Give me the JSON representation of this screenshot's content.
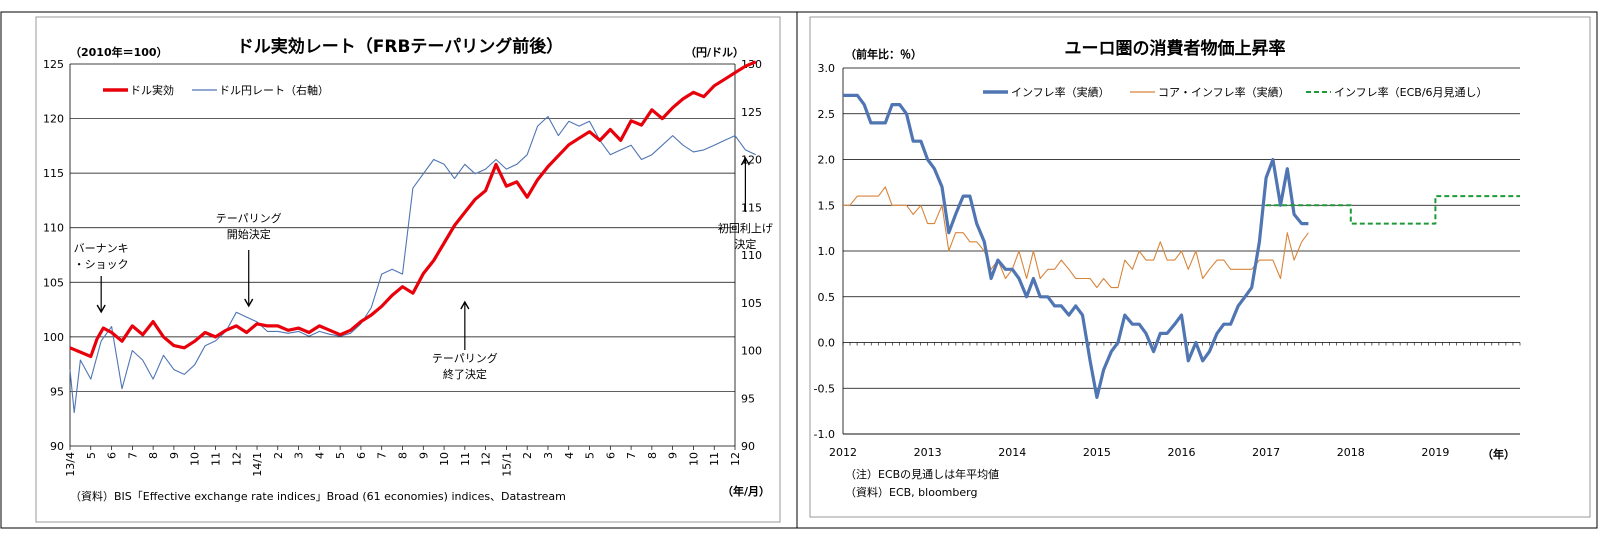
{
  "left": {
    "title": "ドル実効レート（FRBテーパリング前後）",
    "left_unit": "（2010年＝100）",
    "right_unit": "（円/ドル）",
    "source": "（資料）BIS「Effective exchange rate indices」Broad (61 economies) indices、Datastream",
    "x_unit": "（年/月）",
    "legend": [
      "ドル実効",
      "ドル円レート（右軸）"
    ],
    "colors": {
      "ドル実効": "#e8000b",
      "ドル円レート（右軸）": "#4f75b3"
    },
    "annotations": [
      {
        "lines": [
          "バーナンキ",
          "・ショック"
        ],
        "x": 1.5
      },
      {
        "lines": [
          "テーパリング",
          "開始決定"
        ],
        "x": 8.6
      },
      {
        "lines": [
          "テーパリング",
          "終了決定"
        ],
        "x": 19.0
      },
      {
        "lines": [
          "初回利上げ",
          "決定"
        ],
        "x": 32.5
      }
    ]
  },
  "right": {
    "title": "ユーロ圏の消費者物価上昇率",
    "y_unit": "（前年比：％）",
    "x_unit": "（年）",
    "note": "（注）ECBの見通しは年平均値",
    "source": "（資料）ECB, bloomberg",
    "legend": [
      "インフレ率（実績）",
      "コア・インフレ率（実績）",
      "インフレ率（ECB/6月見通し）"
    ],
    "colors": {
      "インフレ率（実績）": "#4f75b3",
      "コア・インフレ率（実績）": "#d8853a",
      "インフレ率（ECB/6月見通し）": "#1f9a3a"
    }
  },
  "chart_data": [
    {
      "type": "line",
      "title": "ドル実効レート（FRBテーパリング前後）",
      "x_tick_labels": [
        "13/4",
        "5",
        "6",
        "7",
        "8",
        "9",
        "10",
        "11",
        "12",
        "14/1",
        "2",
        "3",
        "4",
        "5",
        "6",
        "7",
        "8",
        "9",
        "10",
        "11",
        "12",
        "15/1",
        "2",
        "3",
        "4",
        "5",
        "6",
        "7",
        "8",
        "9",
        "10",
        "11",
        "12"
      ],
      "ylim_left": [
        90,
        125
      ],
      "ylim_right": [
        90,
        130
      ],
      "y_ticks_left": [
        90,
        95,
        100,
        105,
        110,
        115,
        120,
        125
      ],
      "y_ticks_right": [
        90,
        95,
        100,
        105,
        110,
        115,
        120,
        125,
        130
      ],
      "grid": true,
      "legend_position": "top-left",
      "series": [
        {
          "name": "ドル実効",
          "axis": "left",
          "x": [
            0,
            0.5,
            1,
            1.3,
            1.6,
            2,
            2.5,
            3,
            3.5,
            4,
            4.5,
            5,
            5.5,
            6,
            6.5,
            7,
            7.5,
            8,
            8.5,
            9,
            9.5,
            10,
            10.5,
            11,
            11.5,
            12,
            12.5,
            13,
            13.5,
            14,
            14.5,
            15,
            15.5,
            16,
            16.5,
            17,
            17.5,
            18,
            18.5,
            19,
            19.5,
            20,
            20.5,
            21,
            21.5,
            22,
            22.5,
            23,
            23.5,
            24,
            24.5,
            25,
            25.5,
            26,
            26.5,
            27,
            27.5,
            28,
            28.5,
            29,
            29.5,
            30,
            30.5,
            31,
            31.5,
            32,
            32.5,
            33
          ],
          "values": [
            99.0,
            98.6,
            98.2,
            99.8,
            100.8,
            100.4,
            99.6,
            101.0,
            100.2,
            101.4,
            100.0,
            99.2,
            99.0,
            99.6,
            100.4,
            100.0,
            100.6,
            101.0,
            100.4,
            101.2,
            101.0,
            101.0,
            100.6,
            100.8,
            100.4,
            101.0,
            100.6,
            100.2,
            100.6,
            101.4,
            102.0,
            102.8,
            103.8,
            104.6,
            104.0,
            105.8,
            107.0,
            108.6,
            110.2,
            111.4,
            112.6,
            113.4,
            115.8,
            113.8,
            114.2,
            112.8,
            114.4,
            115.6,
            116.6,
            117.6,
            118.2,
            118.8,
            118.0,
            119.0,
            118.0,
            119.8,
            119.4,
            120.8,
            120.0,
            121.0,
            121.8,
            122.4,
            122.0,
            123.0,
            123.6,
            124.2,
            124.8,
            125.2
          ]
        },
        {
          "name": "ドル円レート（右軸）",
          "axis": "right",
          "x": [
            0,
            0.2,
            0.5,
            1,
            1.5,
            2,
            2.5,
            3,
            3.5,
            4,
            4.5,
            5,
            5.5,
            6,
            6.5,
            7,
            7.5,
            8,
            8.5,
            9,
            9.5,
            10,
            10.5,
            11,
            11.5,
            12,
            12.5,
            13,
            13.5,
            14,
            14.5,
            15,
            15.5,
            16,
            16.5,
            17,
            17.5,
            18,
            18.5,
            19,
            19.5,
            20,
            20.5,
            21,
            21.5,
            22,
            22.5,
            23,
            23.5,
            24,
            24.5,
            25,
            25.5,
            26,
            26.5,
            27,
            27.5,
            28,
            28.5,
            29,
            29.5,
            30,
            30.5,
            31,
            31.5,
            32,
            32.5,
            33
          ],
          "values": [
            98.0,
            93.5,
            99.0,
            97.0,
            101.0,
            102.5,
            96.0,
            100.0,
            99.0,
            97.0,
            99.5,
            98.0,
            97.5,
            98.5,
            100.5,
            101.0,
            102.0,
            104.0,
            103.5,
            103.0,
            102.0,
            102.0,
            101.8,
            102.0,
            101.5,
            102.0,
            101.7,
            101.5,
            101.8,
            102.8,
            104.5,
            108.0,
            108.5,
            108.0,
            117.0,
            118.5,
            120.0,
            119.5,
            118.0,
            119.5,
            118.5,
            119.0,
            120.0,
            119.0,
            119.5,
            120.5,
            123.5,
            124.5,
            122.5,
            124.0,
            123.5,
            124.0,
            122.0,
            120.5,
            121.0,
            121.5,
            120.0,
            120.5,
            121.5,
            122.5,
            121.5,
            120.8,
            121.0,
            121.5,
            122.0,
            122.5,
            121.0,
            120.5
          ]
        }
      ]
    },
    {
      "type": "line",
      "title": "ユーロ圏の消費者物価上昇率",
      "x_ticks": [
        2012,
        2013,
        2014,
        2015,
        2016,
        2017,
        2018,
        2019
      ],
      "xlim": [
        2012,
        2020
      ],
      "ylim": [
        -1.0,
        3.0
      ],
      "y_ticks": [
        -1.0,
        -0.5,
        0.0,
        0.5,
        1.0,
        1.5,
        2.0,
        2.5,
        3.0
      ],
      "grid": true,
      "legend_position": "top",
      "series": [
        {
          "name": "インフレ率（実績）",
          "x": [
            2012.0,
            2012.08,
            2012.17,
            2012.25,
            2012.33,
            2012.42,
            2012.5,
            2012.58,
            2012.67,
            2012.75,
            2012.83,
            2012.92,
            2013.0,
            2013.08,
            2013.17,
            2013.25,
            2013.33,
            2013.42,
            2013.5,
            2013.58,
            2013.67,
            2013.75,
            2013.83,
            2013.92,
            2014.0,
            2014.08,
            2014.17,
            2014.25,
            2014.33,
            2014.42,
            2014.5,
            2014.58,
            2014.67,
            2014.75,
            2014.83,
            2014.92,
            2015.0,
            2015.08,
            2015.17,
            2015.25,
            2015.33,
            2015.42,
            2015.5,
            2015.58,
            2015.67,
            2015.75,
            2015.83,
            2015.92,
            2016.0,
            2016.08,
            2016.17,
            2016.25,
            2016.33,
            2016.42,
            2016.5,
            2016.58,
            2016.67,
            2016.75,
            2016.83,
            2016.92,
            2017.0,
            2017.08,
            2017.17,
            2017.25,
            2017.33,
            2017.42,
            2017.5
          ],
          "values": [
            2.7,
            2.7,
            2.7,
            2.6,
            2.4,
            2.4,
            2.4,
            2.6,
            2.6,
            2.5,
            2.2,
            2.2,
            2.0,
            1.9,
            1.7,
            1.2,
            1.4,
            1.6,
            1.6,
            1.3,
            1.1,
            0.7,
            0.9,
            0.8,
            0.8,
            0.7,
            0.5,
            0.7,
            0.5,
            0.5,
            0.4,
            0.4,
            0.3,
            0.4,
            0.3,
            -0.2,
            -0.6,
            -0.3,
            -0.1,
            0.0,
            0.3,
            0.2,
            0.2,
            0.1,
            -0.1,
            0.1,
            0.1,
            0.2,
            0.3,
            -0.2,
            0.0,
            -0.2,
            -0.1,
            0.1,
            0.2,
            0.2,
            0.4,
            0.5,
            0.6,
            1.1,
            1.8,
            2.0,
            1.5,
            1.9,
            1.4,
            1.3,
            1.3
          ]
        },
        {
          "name": "コア・インフレ率（実績）",
          "x": [
            2012.0,
            2012.08,
            2012.17,
            2012.25,
            2012.33,
            2012.42,
            2012.5,
            2012.58,
            2012.67,
            2012.75,
            2012.83,
            2012.92,
            2013.0,
            2013.08,
            2013.17,
            2013.25,
            2013.33,
            2013.42,
            2013.5,
            2013.58,
            2013.67,
            2013.75,
            2013.83,
            2013.92,
            2014.0,
            2014.08,
            2014.17,
            2014.25,
            2014.33,
            2014.42,
            2014.5,
            2014.58,
            2014.67,
            2014.75,
            2014.83,
            2014.92,
            2015.0,
            2015.08,
            2015.17,
            2015.25,
            2015.33,
            2015.42,
            2015.5,
            2015.58,
            2015.67,
            2015.75,
            2015.83,
            2015.92,
            2016.0,
            2016.08,
            2016.17,
            2016.25,
            2016.33,
            2016.42,
            2016.5,
            2016.58,
            2016.67,
            2016.75,
            2016.83,
            2016.92,
            2017.0,
            2017.08,
            2017.17,
            2017.25,
            2017.33,
            2017.42,
            2017.5
          ],
          "values": [
            1.5,
            1.5,
            1.6,
            1.6,
            1.6,
            1.6,
            1.7,
            1.5,
            1.5,
            1.5,
            1.4,
            1.5,
            1.3,
            1.3,
            1.5,
            1.0,
            1.2,
            1.2,
            1.1,
            1.1,
            1.0,
            0.8,
            0.9,
            0.7,
            0.8,
            1.0,
            0.7,
            1.0,
            0.7,
            0.8,
            0.8,
            0.9,
            0.8,
            0.7,
            0.7,
            0.7,
            0.6,
            0.7,
            0.6,
            0.6,
            0.9,
            0.8,
            1.0,
            0.9,
            0.9,
            1.1,
            0.9,
            0.9,
            1.0,
            0.8,
            1.0,
            0.7,
            0.8,
            0.9,
            0.9,
            0.8,
            0.8,
            0.8,
            0.8,
            0.9,
            0.9,
            0.9,
            0.7,
            1.2,
            0.9,
            1.1,
            1.2
          ]
        },
        {
          "name": "インフレ率（ECB/6月見通し）",
          "x": [
            2017.0,
            2018.0,
            2018.0,
            2019.0,
            2019.0,
            2020.0
          ],
          "values": [
            1.5,
            1.5,
            1.3,
            1.3,
            1.6,
            1.6
          ]
        }
      ]
    }
  ]
}
